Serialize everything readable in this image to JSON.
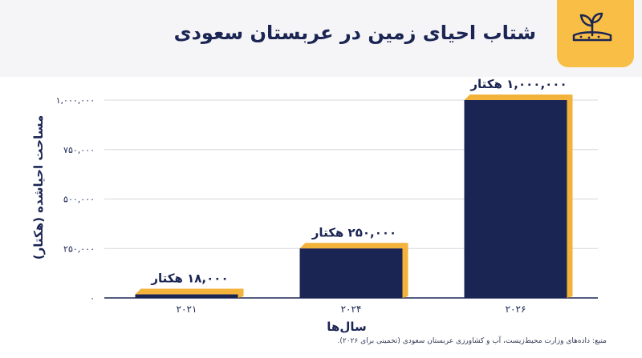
{
  "title": "شتاب احیای زمین در عربستان سعودی",
  "icon": "land-restoration-sprout-icon",
  "source": "منبع: داده‌های وزارت محیط‌زیست، آب و کشاورزی عربستان سعودی (تخمینی برای ۲۰۲۶).",
  "colors": {
    "bar_front": "#1b2553",
    "bar_side": "#f3b23a",
    "title": "#1b2553",
    "badge": "#f8be45"
  },
  "chart_data": {
    "type": "bar",
    "title": "شتاب احیای زمین در عربستان سعودی",
    "xlabel": "سال‌ها",
    "ylabel": "مساحت احیاشده (هکتار)",
    "categories": [
      "۲۰۲۱",
      "۲۰۲۴",
      "۲۰۲۶"
    ],
    "values": [
      18000,
      250000,
      1000000
    ],
    "data_labels": [
      "۱۸,۰۰۰ هکتار",
      "۲۵۰,۰۰۰ هکتار",
      "۱,۰۰۰,۰۰۰ هکتار"
    ],
    "ylim": [
      0,
      1000000
    ],
    "yticks": [
      0,
      250000,
      500000,
      750000,
      1000000
    ],
    "ytick_labels": [
      "۰",
      "۲۵۰,۰۰۰",
      "۵۰۰,۰۰۰",
      "۷۵۰,۰۰۰",
      "۱,۰۰۰,۰۰۰"
    ],
    "grid": true,
    "legend": "none"
  }
}
